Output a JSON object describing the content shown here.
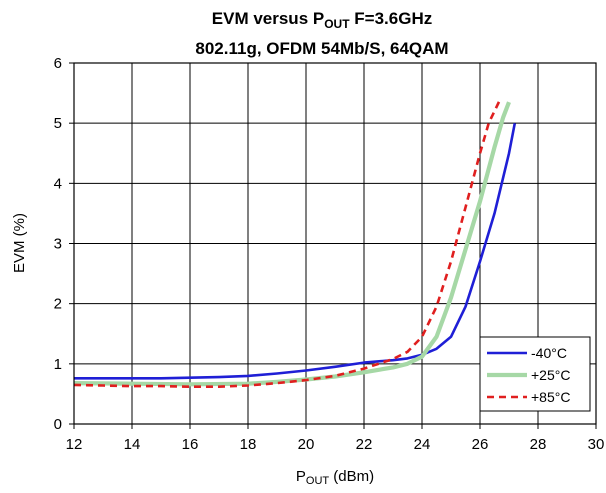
{
  "chart_data": {
    "type": "line",
    "title_main": "EVM versus P",
    "title_sub": "OUT",
    "title_tail": " F=3.6GHz",
    "title_line2": "802.11g, OFDM 54Mb/S, 64QAM",
    "xlabel_main": "P",
    "xlabel_sub": "OUT",
    "xlabel_tail": " (dBm)",
    "ylabel": "EVM (%)",
    "xlim": [
      12,
      30
    ],
    "ylim": [
      0,
      6
    ],
    "xticks": [
      "12",
      "14",
      "16",
      "18",
      "20",
      "22",
      "24",
      "26",
      "28",
      "30"
    ],
    "yticks": [
      "0",
      "1",
      "2",
      "3",
      "4",
      "5",
      "6"
    ],
    "grid": true,
    "legend_position": "bottom-right",
    "series": [
      {
        "name": "-40°C",
        "color": "#1f1fd6",
        "dash": "solid",
        "x": [
          12,
          14,
          15,
          16,
          17,
          18,
          19,
          20,
          21,
          22,
          23,
          23.5,
          24,
          24.5,
          25,
          25.5,
          26,
          26.5,
          27,
          27.2
        ],
        "y": [
          0.76,
          0.76,
          0.76,
          0.77,
          0.78,
          0.8,
          0.84,
          0.89,
          0.95,
          1.02,
          1.06,
          1.09,
          1.15,
          1.25,
          1.45,
          1.95,
          2.7,
          3.5,
          4.5,
          5.0
        ]
      },
      {
        "name": "+25°C",
        "color": "#a6d8a6",
        "dash": "solid",
        "x": [
          12,
          14,
          16,
          18,
          19,
          20,
          21,
          22,
          23,
          23.5,
          24,
          24.5,
          25,
          25.5,
          26,
          26.5,
          26.8,
          27.0
        ],
        "y": [
          0.68,
          0.67,
          0.66,
          0.67,
          0.7,
          0.74,
          0.79,
          0.86,
          0.94,
          1.0,
          1.12,
          1.45,
          2.1,
          2.9,
          3.7,
          4.6,
          5.1,
          5.35
        ]
      },
      {
        "name": "+85°C",
        "color": "#e01f1f",
        "dash": "dashed",
        "x": [
          12,
          13,
          14,
          15,
          16,
          17,
          18,
          19,
          20,
          21,
          22,
          23,
          23.5,
          24,
          24.5,
          25,
          25.5,
          26,
          26.3,
          26.7
        ],
        "y": [
          0.65,
          0.64,
          0.63,
          0.63,
          0.62,
          0.62,
          0.64,
          0.68,
          0.73,
          0.8,
          0.92,
          1.08,
          1.2,
          1.45,
          1.95,
          2.7,
          3.6,
          4.5,
          5.0,
          5.4
        ]
      }
    ]
  }
}
